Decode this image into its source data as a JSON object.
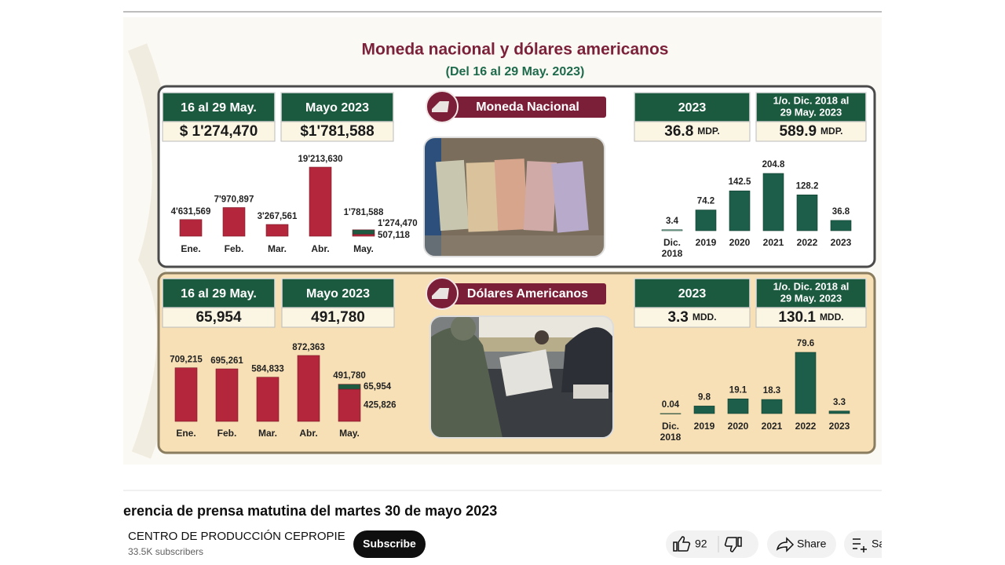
{
  "slide": {
    "title": "Moneda nacional y dólares americanos",
    "subtitle": "(Del 16 al 29 May. 2023)",
    "panels": [
      {
        "section": "Moneda Nacional",
        "boxes": [
          {
            "label": [
              "16 al 29 May."
            ],
            "value": "$ 1'274,470"
          },
          {
            "label": [
              "Mayo 2023"
            ],
            "value": "$1'781,588"
          },
          {
            "label": [
              "2023"
            ],
            "value": "36.8",
            "unit": "MDP."
          },
          {
            "label": [
              "1/o. Dic. 2018 al",
              "29 May. 2023"
            ],
            "value": "589.9",
            "unit": "MDP."
          }
        ],
        "monthly_chart": {
          "type": "bar",
          "categories": [
            "Ene.",
            "Feb.",
            "Mar.",
            "Abr.",
            "May."
          ],
          "series": [
            {
              "color": "#b3263c",
              "values": [
                4631569,
                7970897,
                3267561,
                19213630,
                507118
              ],
              "value_labels": [
                "4'631,569",
                "7'970,897",
                "3'267,561",
                "19'213,630",
                "507,118"
              ]
            },
            {
              "color": "#1d5a41",
              "values": [
                null,
                null,
                null,
                null,
                1274470
              ],
              "value_labels": [
                null,
                null,
                null,
                null,
                "1'274,470"
              ]
            }
          ],
          "totals": [
            null,
            null,
            null,
            null,
            1781588
          ],
          "total_labels": [
            null,
            null,
            null,
            null,
            "1'781,588"
          ]
        },
        "annual_chart": {
          "type": "bar",
          "categories": [
            [
              "Dic.",
              "2018"
            ],
            "2019",
            "2020",
            "2021",
            "2022",
            "2023"
          ],
          "values": [
            3.4,
            74.2,
            142.5,
            204.8,
            128.2,
            36.8
          ],
          "colors": [
            "#9fcab4",
            "#1c5e4a",
            "#1c5e4a",
            "#1c5e4a",
            "#1c5e4a",
            "#1c5e4a"
          ]
        }
      },
      {
        "section": "Dólares Americanos",
        "boxes": [
          {
            "label": [
              "16 al 29 May."
            ],
            "value": "65,954"
          },
          {
            "label": [
              "Mayo 2023"
            ],
            "value": "491,780"
          },
          {
            "label": [
              "2023"
            ],
            "value": "3.3",
            "unit": "MDD."
          },
          {
            "label": [
              "1/o. Dic. 2018 al",
              "29 May. 2023"
            ],
            "value": "130.1",
            "unit": "MDD."
          }
        ],
        "monthly_chart": {
          "type": "bar",
          "categories": [
            "Ene.",
            "Feb.",
            "Mar.",
            "Abr.",
            "May."
          ],
          "series": [
            {
              "color": "#b3263c",
              "values": [
                709215,
                695261,
                584833,
                872363,
                425826
              ],
              "value_labels": [
                "709,215",
                "695,261",
                "584,833",
                "872,363",
                "425,826"
              ]
            },
            {
              "color": "#1d5a41",
              "values": [
                null,
                null,
                null,
                null,
                65954
              ],
              "value_labels": [
                null,
                null,
                null,
                null,
                "65,954"
              ]
            }
          ],
          "totals": [
            null,
            null,
            null,
            null,
            491780
          ],
          "total_labels": [
            null,
            null,
            null,
            null,
            "491,780"
          ]
        },
        "annual_chart": {
          "type": "bar",
          "categories": [
            [
              "Dic.",
              "2018"
            ],
            "2019",
            "2020",
            "2021",
            "2022",
            "2023"
          ],
          "values": [
            0.04,
            9.8,
            19.1,
            18.3,
            79.6,
            3.3
          ],
          "colors": [
            "#9fcab4",
            "#1c5e4a",
            "#1c5e4a",
            "#1c5e4a",
            "#1c5e4a",
            "#1c5e4a"
          ]
        }
      }
    ]
  },
  "video": {
    "title": "erencia de prensa matutina del martes 30 de mayo 2023",
    "channel": "CENTRO DE PRODUCCIÓN CEPROPIE",
    "subscribers": "33.5K subscribers",
    "subscribe": "Subscribe",
    "likes": "92",
    "share": "Share",
    "save": "Sa"
  }
}
